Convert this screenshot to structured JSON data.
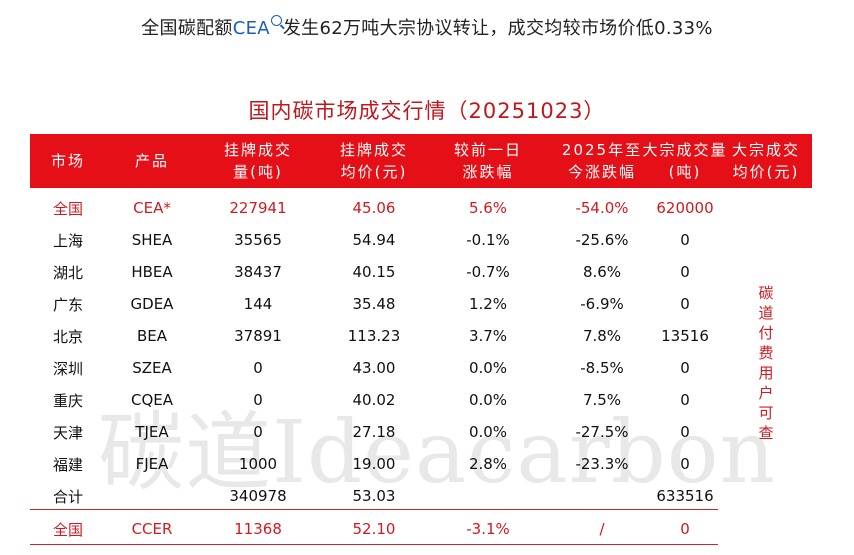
{
  "headline": {
    "before": "全国碳配额",
    "keyword": "CEA",
    "after": "发生62万吨大宗协议转让，成交均较市场价低0.33%"
  },
  "table": {
    "title": "国内碳市场成交行情（20251023）",
    "headers": [
      "市场",
      "产品",
      "挂牌成交\n量(吨)",
      "挂牌成交\n均价(元)",
      "较前一日\n涨跌幅",
      "2025年至\n今涨跌幅",
      "大宗成交量\n(吨)",
      "大宗成交\n均价(元)"
    ],
    "rows": [
      {
        "market": "全国",
        "product": "CEA*",
        "listed_volume": "227941",
        "listed_avg_price": "45.06",
        "daily_change": "5.6%",
        "ytd_change": "-54.0%",
        "block_volume": "620000",
        "highlight": true
      },
      {
        "market": "上海",
        "product": "SHEA",
        "listed_volume": "35565",
        "listed_avg_price": "54.94",
        "daily_change": "-0.1%",
        "ytd_change": "-25.6%",
        "block_volume": "0"
      },
      {
        "market": "湖北",
        "product": "HBEA",
        "listed_volume": "38437",
        "listed_avg_price": "40.15",
        "daily_change": "-0.7%",
        "ytd_change": "8.6%",
        "block_volume": "0"
      },
      {
        "market": "广东",
        "product": "GDEA",
        "listed_volume": "144",
        "listed_avg_price": "35.48",
        "daily_change": "1.2%",
        "ytd_change": "-6.9%",
        "block_volume": "0"
      },
      {
        "market": "北京",
        "product": "BEA",
        "listed_volume": "37891",
        "listed_avg_price": "113.23",
        "daily_change": "3.7%",
        "ytd_change": "7.8%",
        "block_volume": "13516"
      },
      {
        "market": "深圳",
        "product": "SZEA",
        "listed_volume": "0",
        "listed_avg_price": "43.00",
        "daily_change": "0.0%",
        "ytd_change": "-8.5%",
        "block_volume": "0"
      },
      {
        "market": "重庆",
        "product": "CQEA",
        "listed_volume": "0",
        "listed_avg_price": "40.02",
        "daily_change": "0.0%",
        "ytd_change": "7.5%",
        "block_volume": "0"
      },
      {
        "market": "天津",
        "product": "TJEA",
        "listed_volume": "0",
        "listed_avg_price": "27.18",
        "daily_change": "0.0%",
        "ytd_change": "-27.5%",
        "block_volume": "0"
      },
      {
        "market": "福建",
        "product": "FJEA",
        "listed_volume": "1000",
        "listed_avg_price": "19.00",
        "daily_change": "2.8%",
        "ytd_change": "-23.3%",
        "block_volume": "0"
      },
      {
        "market": "合计",
        "product": "",
        "listed_volume": "340978",
        "listed_avg_price": "53.03",
        "daily_change": "",
        "ytd_change": "",
        "block_volume": "633516"
      },
      {
        "market": "全国",
        "product": "CCER",
        "listed_volume": "11368",
        "listed_avg_price": "52.10",
        "daily_change": "-3.1%",
        "ytd_change": "/",
        "block_volume": "0",
        "highlight": true
      }
    ],
    "side_note": "碳道付费用户可查",
    "watermark": "碳道Ideacarbon"
  },
  "colors": {
    "header_bg": "#e50f17",
    "title": "#c0161d",
    "highlight_text": "#d3191f",
    "keyword": "#1a5bc4"
  }
}
